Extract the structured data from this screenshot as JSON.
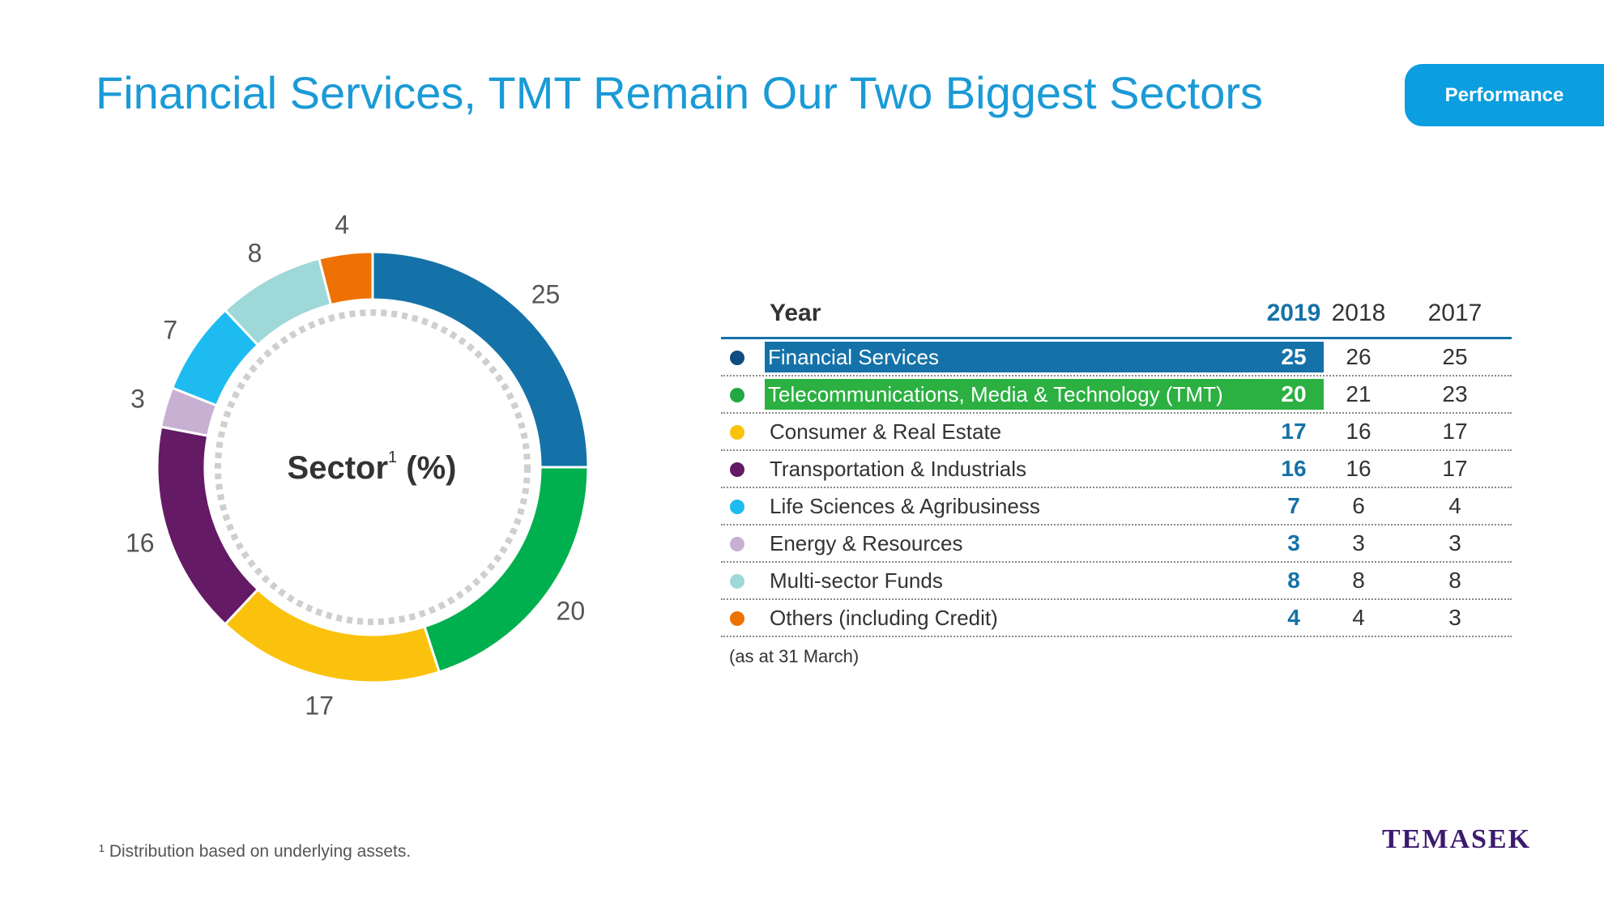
{
  "title": "Financial Services, TMT Remain Our Two Biggest Sectors",
  "tab_label": "Performance",
  "center_label": {
    "text": "Sector",
    "sup": "1",
    "unit": "(%)"
  },
  "table": {
    "year_header": "Year",
    "years": [
      "2019",
      "2018",
      "2017"
    ],
    "note": "(as at 31 March)"
  },
  "chart_data": {
    "type": "table",
    "title": "Sector (%)",
    "chart_variant": "donut",
    "highlight_year": "2019",
    "categories": [
      "Financial Services",
      "Telecommunications, Media & Technology (TMT)",
      "Consumer & Real Estate",
      "Transportation & Industrials",
      "Life Sciences & Agribusiness",
      "Energy & Resources",
      "Multi-sector Funds",
      "Others (including Credit)"
    ],
    "colors": [
      "#0f4c81",
      "#21a843",
      "#fbc20d",
      "#641a64",
      "#1dbbf0",
      "#c8b0d2",
      "#9fd8d8",
      "#ee7203"
    ],
    "row_highlight": [
      "#1572a8",
      "#2bb041",
      null,
      null,
      null,
      null,
      null,
      null
    ],
    "series": [
      {
        "name": "2019",
        "values": [
          25,
          20,
          17,
          16,
          7,
          3,
          8,
          4
        ]
      },
      {
        "name": "2018",
        "values": [
          26,
          21,
          16,
          16,
          6,
          3,
          8,
          4
        ]
      },
      {
        "name": "2017",
        "values": [
          25,
          23,
          17,
          17,
          4,
          3,
          8,
          3
        ]
      }
    ],
    "donut_order": [
      0,
      1,
      2,
      3,
      5,
      4,
      6,
      7
    ],
    "donut_colors": [
      "#1572a8",
      "#00b04f",
      "#fbc20d",
      "#641a64",
      "#c8b0d2",
      "#1dbbf0",
      "#9fd8d8",
      "#ee7203"
    ]
  },
  "footnote": "¹ Distribution based on underlying assets.",
  "logo": "TEMASEK"
}
